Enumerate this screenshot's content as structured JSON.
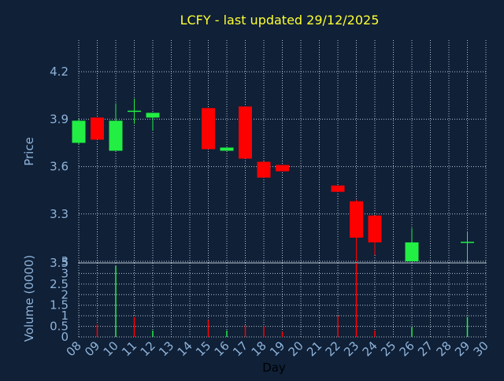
{
  "colors": {
    "background": "#0f2037",
    "title": "#ffff33",
    "axis_text": "#8fb3d9",
    "grid": "#b8c4d2",
    "up": "#22ee44",
    "down": "#ff0000",
    "day_label": "#000000"
  },
  "chart_data": [
    {
      "type": "candlestick",
      "title": "LCFY - last updated 29/12/2025",
      "ylabel": "Price",
      "ylim": [
        2.99,
        4.4
      ],
      "yticks": [
        "4.2",
        "3.9",
        "3.6",
        "3.3",
        "3"
      ],
      "ytick_values": [
        4.2,
        3.9,
        3.6,
        3.3,
        3.0
      ],
      "grid": true,
      "candles": [
        {
          "day": 8,
          "open": 3.75,
          "high": 3.9,
          "low": 3.74,
          "close": 3.89
        },
        {
          "day": 9,
          "open": 3.91,
          "high": 3.91,
          "low": 3.77,
          "close": 3.77
        },
        {
          "day": 10,
          "open": 3.7,
          "high": 4.0,
          "low": 3.7,
          "close": 3.89
        },
        {
          "day": 11,
          "open": 3.95,
          "high": 4.03,
          "low": 3.87,
          "close": 3.95
        },
        {
          "day": 12,
          "open": 3.91,
          "high": 3.94,
          "low": 3.83,
          "close": 3.94
        },
        {
          "day": 15,
          "open": 3.97,
          "high": 3.97,
          "low": 3.71,
          "close": 3.71
        },
        {
          "day": 16,
          "open": 3.7,
          "high": 3.72,
          "low": 3.7,
          "close": 3.72
        },
        {
          "day": 17,
          "open": 3.98,
          "high": 3.98,
          "low": 3.65,
          "close": 3.65
        },
        {
          "day": 18,
          "open": 3.63,
          "high": 3.63,
          "low": 3.53,
          "close": 3.53
        },
        {
          "day": 19,
          "open": 3.61,
          "high": 3.61,
          "low": 3.57,
          "close": 3.57
        },
        {
          "day": 22,
          "open": 3.48,
          "high": 3.48,
          "low": 3.44,
          "close": 3.44
        },
        {
          "day": 23,
          "open": 3.38,
          "high": 3.39,
          "low": 3.0,
          "close": 3.15
        },
        {
          "day": 24,
          "open": 3.29,
          "high": 3.29,
          "low": 3.04,
          "close": 3.12
        },
        {
          "day": 26,
          "open": 3.0,
          "high": 3.21,
          "low": 3.0,
          "close": 3.12
        },
        {
          "day": 29,
          "open": 3.12,
          "high": 3.19,
          "low": 2.99,
          "close": 3.12
        }
      ]
    },
    {
      "type": "bar",
      "ylabel": "Volume (0000)",
      "ylim": [
        0,
        3.5
      ],
      "yticks": [
        "3.5",
        "3",
        "2.5",
        "2",
        "1.5",
        "1",
        "0.5",
        "0"
      ],
      "ytick_values": [
        3.5,
        3.0,
        2.5,
        2.0,
        1.5,
        1.0,
        0.5,
        0.0
      ],
      "xlabel": "Day",
      "xticks": [
        "08",
        "09",
        "10",
        "11",
        "12",
        "13",
        "14",
        "15",
        "16",
        "17",
        "18",
        "19",
        "20",
        "21",
        "22",
        "23",
        "24",
        "25",
        "26",
        "27",
        "28",
        "29",
        "30"
      ],
      "x_range": [
        8,
        30
      ],
      "grid": true,
      "bars": [
        {
          "day": 9,
          "value": 0.6,
          "dir": "down"
        },
        {
          "day": 10,
          "value": 3.35,
          "dir": "up"
        },
        {
          "day": 11,
          "value": 0.95,
          "dir": "down"
        },
        {
          "day": 12,
          "value": 0.3,
          "dir": "up"
        },
        {
          "day": 15,
          "value": 0.8,
          "dir": "down"
        },
        {
          "day": 16,
          "value": 0.3,
          "dir": "up"
        },
        {
          "day": 17,
          "value": 0.55,
          "dir": "down"
        },
        {
          "day": 18,
          "value": 0.5,
          "dir": "down"
        },
        {
          "day": 19,
          "value": 0.25,
          "dir": "down"
        },
        {
          "day": 22,
          "value": 1.0,
          "dir": "down"
        },
        {
          "day": 23,
          "value": 3.5,
          "dir": "down"
        },
        {
          "day": 24,
          "value": 0.3,
          "dir": "down"
        },
        {
          "day": 26,
          "value": 0.45,
          "dir": "up"
        },
        {
          "day": 29,
          "value": 0.95,
          "dir": "up"
        }
      ]
    }
  ]
}
